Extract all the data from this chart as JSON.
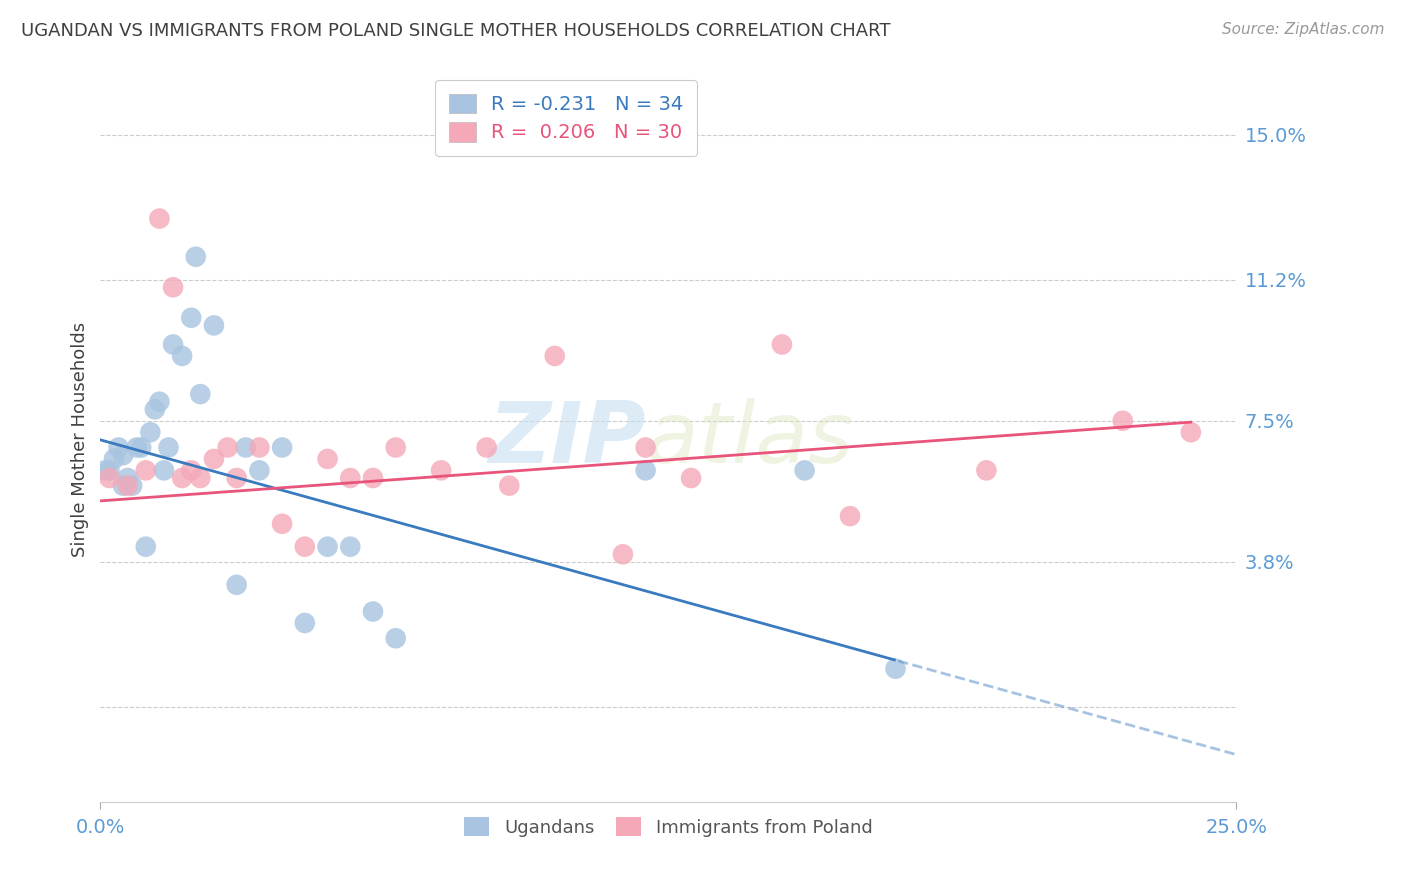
{
  "title": "UGANDAN VS IMMIGRANTS FROM POLAND SINGLE MOTHER HOUSEHOLDS CORRELATION CHART",
  "source": "Source: ZipAtlas.com",
  "ylabel": "Single Mother Households",
  "xlim": [
    0.0,
    0.25
  ],
  "ylim": [
    -0.025,
    0.165
  ],
  "yticks_grid": [
    0.0,
    0.038,
    0.075,
    0.112,
    0.15
  ],
  "ytick_labels": [
    "",
    "3.8%",
    "7.5%",
    "11.2%",
    "15.0%"
  ],
  "ugandan_color": "#a8c4e0",
  "poland_color": "#f4a8b8",
  "ugandan_line_color": "#3a7abf",
  "poland_line_color": "#e8547a",
  "watermark_zip": "ZIP",
  "watermark_atlas": "atlas",
  "legend_r_ugandan": "R = -0.231",
  "legend_n_ugandan": "N = 34",
  "legend_r_poland": "R =  0.206",
  "legend_n_poland": "N = 30",
  "ugandan_x": [
    0.001,
    0.002,
    0.003,
    0.004,
    0.005,
    0.005,
    0.006,
    0.007,
    0.008,
    0.009,
    0.01,
    0.011,
    0.012,
    0.013,
    0.014,
    0.015,
    0.016,
    0.018,
    0.02,
    0.021,
    0.022,
    0.025,
    0.03,
    0.032,
    0.035,
    0.04,
    0.045,
    0.05,
    0.055,
    0.06,
    0.065,
    0.12,
    0.155,
    0.175
  ],
  "ugandan_y": [
    0.062,
    0.062,
    0.065,
    0.068,
    0.058,
    0.066,
    0.06,
    0.058,
    0.068,
    0.068,
    0.042,
    0.072,
    0.078,
    0.08,
    0.062,
    0.068,
    0.095,
    0.092,
    0.102,
    0.118,
    0.082,
    0.1,
    0.032,
    0.068,
    0.062,
    0.068,
    0.022,
    0.042,
    0.042,
    0.025,
    0.018,
    0.062,
    0.062,
    0.01
  ],
  "poland_x": [
    0.002,
    0.006,
    0.01,
    0.013,
    0.016,
    0.018,
    0.02,
    0.022,
    0.025,
    0.028,
    0.03,
    0.035,
    0.04,
    0.045,
    0.05,
    0.055,
    0.06,
    0.065,
    0.075,
    0.085,
    0.09,
    0.1,
    0.115,
    0.12,
    0.13,
    0.15,
    0.165,
    0.195,
    0.225,
    0.24
  ],
  "poland_y": [
    0.06,
    0.058,
    0.062,
    0.128,
    0.11,
    0.06,
    0.062,
    0.06,
    0.065,
    0.068,
    0.06,
    0.068,
    0.048,
    0.042,
    0.065,
    0.06,
    0.06,
    0.068,
    0.062,
    0.068,
    0.058,
    0.092,
    0.04,
    0.068,
    0.06,
    0.095,
    0.05,
    0.062,
    0.075,
    0.072
  ],
  "background_color": "#ffffff",
  "grid_color": "#cccccc",
  "tick_color": "#5b9bd5",
  "title_color": "#404040",
  "ylabel_color": "#404040"
}
